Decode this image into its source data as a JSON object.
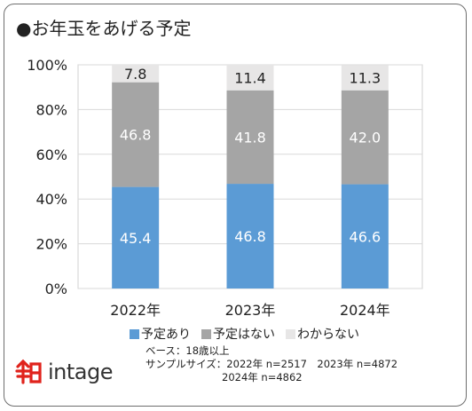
{
  "title": "●お年玉をあげる予定",
  "chart_data": {
    "type": "bar",
    "stacked": true,
    "categories": [
      "2022年",
      "2023年",
      "2024年"
    ],
    "series": [
      {
        "name": "予定あり",
        "values": [
          45.4,
          46.8,
          46.6
        ],
        "color": "#5b9bd5",
        "label_color": "#ffffff"
      },
      {
        "name": "予定はない",
        "values": [
          46.8,
          41.8,
          42.0
        ],
        "color": "#a5a5a5",
        "label_color": "#ffffff"
      },
      {
        "name": "わからない",
        "values": [
          7.8,
          11.4,
          11.3
        ],
        "color": "#e7e6e6",
        "label_color": "#222222"
      }
    ],
    "value_labels": [
      [
        "45.4",
        "46.8",
        "46.6"
      ],
      [
        "46.8",
        "41.8",
        "42.0"
      ],
      [
        "7.8",
        "11.4",
        "11.3"
      ]
    ],
    "ylim": [
      0,
      100
    ],
    "yticks": [
      0,
      20,
      40,
      60,
      80,
      100
    ],
    "ytick_labels": [
      "0%",
      "20%",
      "40%",
      "60%",
      "80%",
      "100%"
    ],
    "grid": true,
    "legend_position": "bottom"
  },
  "notes": {
    "base": "ベース：18歳以上",
    "sample_line1": "サンプルサイズ：2022年 n=2517　2023年 n=4872",
    "sample_line2": "2024年 n=4862"
  },
  "logo": {
    "icon": "intage-logo-icon",
    "text": "intage",
    "brand_color": "#e0231c"
  }
}
